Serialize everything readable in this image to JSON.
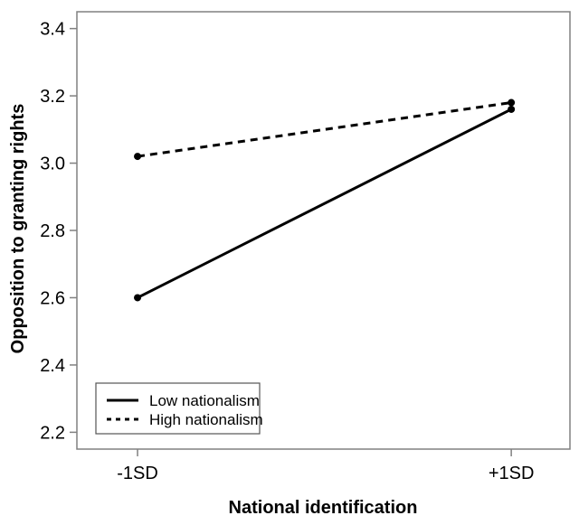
{
  "figure": {
    "background": "#ffffff",
    "frame_color": "#808080",
    "line_color": "#000000",
    "text_color": "#000000",
    "legend_border": "#555555"
  },
  "chart_data": {
    "type": "line",
    "categories": [
      "-1SD",
      "+1SD"
    ],
    "series": [
      {
        "name": "Low nationalism",
        "line_style": "solid",
        "values": [
          2.6,
          3.16
        ]
      },
      {
        "name": "High nationalism",
        "line_style": "dashed",
        "values": [
          3.02,
          3.18
        ]
      }
    ],
    "title": "",
    "xlabel": "National identification",
    "ylabel": "Opposition to granting rights",
    "ylim": [
      2.15,
      3.45
    ],
    "yticks": [
      2.2,
      2.4,
      2.6,
      2.8,
      3.0,
      3.2,
      3.4
    ],
    "grid": false,
    "markers": "filled-circle",
    "legend": {
      "position": "bottom-left",
      "entries": [
        "Low nationalism",
        "High nationalism"
      ]
    }
  }
}
